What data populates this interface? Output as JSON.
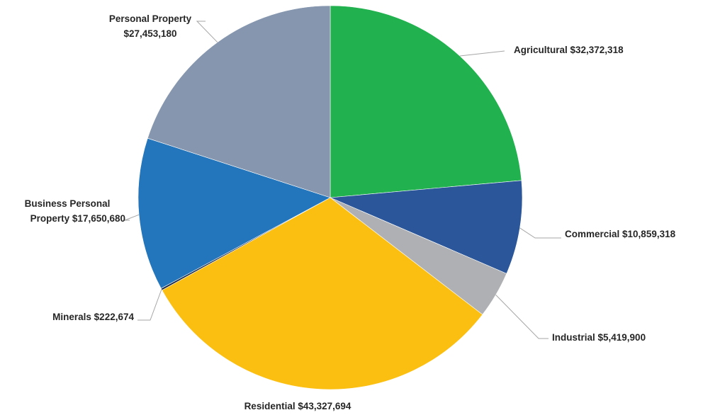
{
  "chart_data": {
    "type": "pie",
    "title": "",
    "slices": [
      {
        "name": "Agricultural",
        "value": 32372318,
        "label_text": "Agricultural  $32,372,318",
        "color": "#21b14e"
      },
      {
        "name": "Commercial",
        "value": 10859318,
        "label_text": "Commercial  $10,859,318",
        "color": "#2b579a"
      },
      {
        "name": "Industrial",
        "value": 5419900,
        "label_text": "Industrial  $5,419,900",
        "color": "#afb0b3"
      },
      {
        "name": "Residential",
        "value": 43327694,
        "label_text": "Residential  $43,327,694",
        "color": "#fbbf12"
      },
      {
        "name": "Minerals",
        "value": 222674,
        "label_text": "Minerals  $222,674",
        "color": "#1c2b47"
      },
      {
        "name": "Business Personal Property",
        "value": 17650680,
        "label_lines": [
          "Business Personal",
          "Property  $17,650,680"
        ],
        "color": "#2376bb"
      },
      {
        "name": "Personal Property",
        "value": 27453180,
        "label_lines": [
          "Personal Property",
          "$27,453,180"
        ],
        "color": "#8596ae"
      }
    ],
    "start_angle": "12 o'clock",
    "direction": "clockwise",
    "legend": "none"
  }
}
